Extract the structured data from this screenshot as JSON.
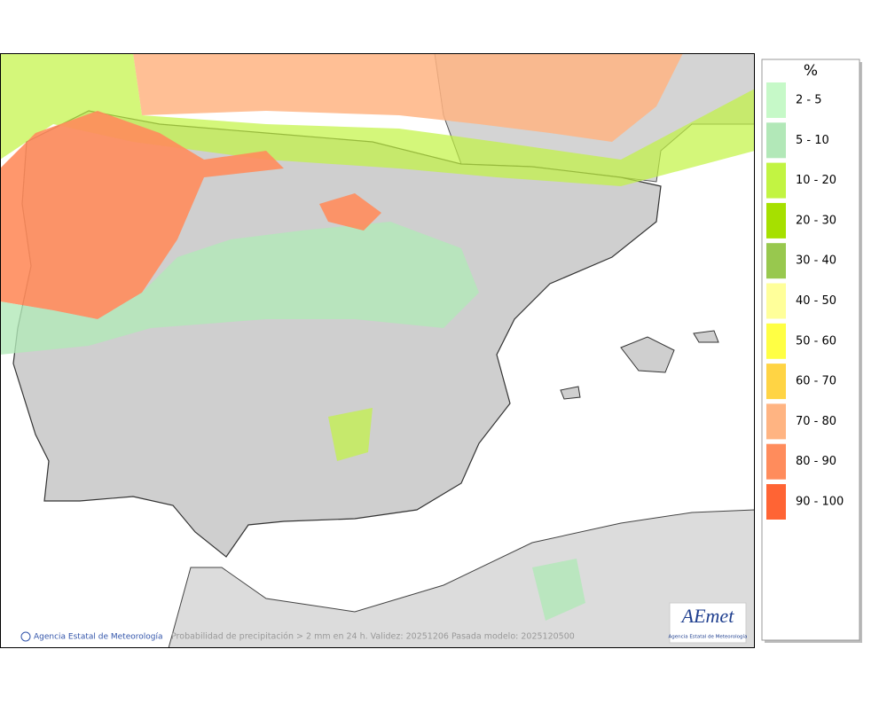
{
  "legend": {
    "title": "%",
    "items": [
      {
        "label": "2 - 5",
        "color": "#c6f9c8"
      },
      {
        "label": "5 - 10",
        "color": "#b2e8b8"
      },
      {
        "label": "10 - 20",
        "color": "#c2f442"
      },
      {
        "label": "20 - 30",
        "color": "#a6e000"
      },
      {
        "label": "30 - 40",
        "color": "#98c84e"
      },
      {
        "label": "40 - 50",
        "color": "#ffff9a"
      },
      {
        "label": "50 - 60",
        "color": "#ffff44"
      },
      {
        "label": "60 - 70",
        "color": "#ffd444"
      },
      {
        "label": "70 - 80",
        "color": "#ffb482"
      },
      {
        "label": "80 - 90",
        "color": "#ff8c5c"
      },
      {
        "label": "90 - 100",
        "color": "#ff6434"
      }
    ]
  },
  "footer": {
    "credit": "Agencia Estatal de Meteorología",
    "caption": "Probabilidad de precipitación > 2 mm en 24 h. Validez: 20251206 Pasada modelo: 2025120500"
  },
  "logo": {
    "text": "AEmet",
    "subtitle": "Agencia Estatal de Meteorología"
  }
}
